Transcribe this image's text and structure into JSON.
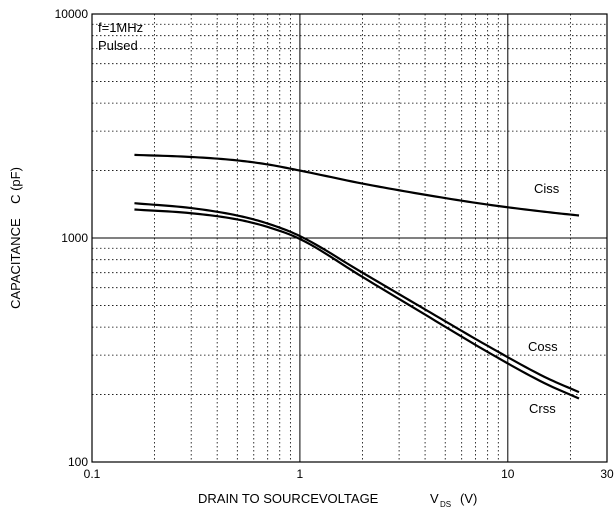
{
  "chart_data": {
    "type": "line",
    "title": "",
    "xlabel": "DRAIN TO SOURCEVOLTAGE",
    "xlabel_symbol": "V",
    "xlabel_subscript": "DS",
    "xlabel_unit": "(V)",
    "ylabel": "CAPACITANCE    C (pF)",
    "x_scale": "log",
    "y_scale": "log",
    "xlim": [
      0.1,
      30
    ],
    "ylim": [
      100,
      10000
    ],
    "x_tick_labels": [
      "0.1",
      "1",
      "10",
      "30"
    ],
    "y_tick_labels": [
      "100",
      "1000",
      "10000"
    ],
    "grid": true,
    "legend": "none (series labeled inline)",
    "annotations": [
      "f=1MHz",
      "Pulsed"
    ],
    "series": [
      {
        "name": "Ciss",
        "x": [
          0.16,
          0.3,
          0.5,
          0.7,
          1.0,
          2.0,
          4.0,
          8.0,
          15.0,
          22.0
        ],
        "y": [
          2350,
          2300,
          2220,
          2130,
          2000,
          1750,
          1560,
          1410,
          1310,
          1260
        ]
      },
      {
        "name": "Coss",
        "x": [
          0.16,
          0.3,
          0.5,
          0.7,
          1.0,
          2.0,
          4.0,
          8.0,
          15.0,
          22.0
        ],
        "y": [
          1430,
          1360,
          1260,
          1160,
          1020,
          700,
          480,
          330,
          240,
          205
        ]
      },
      {
        "name": "Crss",
        "x": [
          0.16,
          0.3,
          0.5,
          0.7,
          1.0,
          2.0,
          4.0,
          8.0,
          15.0,
          22.0
        ],
        "y": [
          1340,
          1290,
          1210,
          1120,
          990,
          670,
          455,
          310,
          225,
          192
        ]
      }
    ]
  }
}
